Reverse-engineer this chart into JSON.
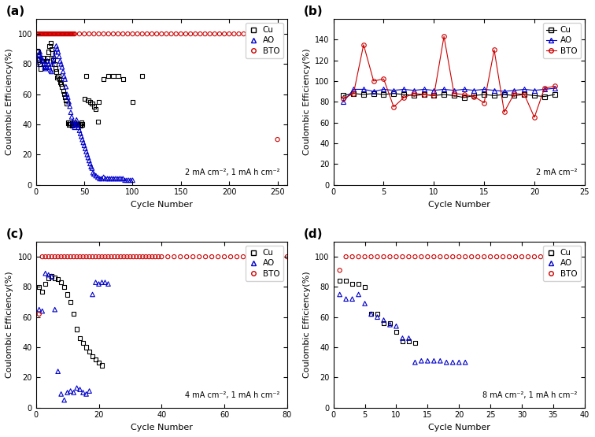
{
  "panel_a": {
    "Cu_x": [
      1,
      2,
      3,
      4,
      5,
      6,
      7,
      8,
      9,
      10,
      11,
      12,
      13,
      14,
      15,
      16,
      17,
      18,
      19,
      20,
      21,
      22,
      23,
      24,
      25,
      26,
      27,
      28,
      29,
      30,
      31,
      32,
      33,
      34,
      35,
      36,
      37,
      38,
      39,
      40,
      41,
      42,
      43,
      44,
      45,
      46,
      47,
      48,
      50,
      52,
      54,
      56,
      58,
      60,
      62,
      64,
      65,
      70,
      75,
      80,
      85,
      90,
      100,
      110
    ],
    "Cu_y": [
      89,
      88,
      83,
      80,
      77,
      82,
      84,
      82,
      80,
      78,
      82,
      84,
      88,
      92,
      94,
      90,
      87,
      83,
      80,
      77,
      75,
      71,
      72,
      70,
      68,
      67,
      65,
      62,
      60,
      58,
      56,
      54,
      41,
      40,
      41,
      40,
      39,
      40,
      40,
      41,
      40,
      40,
      40,
      40,
      40,
      39,
      41,
      40,
      57,
      72,
      56,
      55,
      54,
      52,
      50,
      42,
      55,
      70,
      72,
      72,
      72,
      70,
      55,
      72
    ],
    "AO_x": [
      1,
      2,
      3,
      4,
      5,
      6,
      7,
      8,
      9,
      10,
      11,
      12,
      13,
      14,
      15,
      16,
      17,
      18,
      19,
      20,
      21,
      22,
      23,
      24,
      25,
      26,
      27,
      28,
      29,
      30,
      31,
      32,
      33,
      34,
      35,
      36,
      37,
      38,
      39,
      40,
      41,
      42,
      43,
      44,
      45,
      46,
      47,
      48,
      49,
      50,
      51,
      52,
      53,
      54,
      55,
      56,
      57,
      58,
      59,
      60,
      62,
      64,
      66,
      68,
      70,
      72,
      74,
      76,
      78,
      80,
      82,
      84,
      86,
      88,
      90,
      92,
      94,
      96,
      98,
      100
    ],
    "AO_y": [
      80,
      84,
      86,
      88,
      85,
      84,
      82,
      80,
      78,
      77,
      78,
      82,
      80,
      78,
      76,
      75,
      80,
      82,
      85,
      88,
      92,
      90,
      88,
      85,
      82,
      80,
      78,
      75,
      72,
      70,
      65,
      60,
      58,
      55,
      52,
      48,
      45,
      42,
      40,
      38,
      40,
      43,
      40,
      38,
      36,
      34,
      32,
      30,
      28,
      26,
      24,
      22,
      20,
      18,
      16,
      14,
      12,
      11,
      8,
      7,
      6,
      5,
      4,
      4,
      5,
      4,
      4,
      4,
      4,
      4,
      4,
      4,
      4,
      4,
      4,
      3,
      3,
      3,
      3,
      3
    ],
    "BTO_x": [
      1,
      2,
      3,
      4,
      5,
      6,
      7,
      8,
      9,
      10,
      11,
      12,
      13,
      14,
      15,
      16,
      17,
      18,
      19,
      20,
      21,
      22,
      23,
      24,
      25,
      26,
      27,
      28,
      29,
      30,
      31,
      32,
      33,
      34,
      35,
      36,
      37,
      38,
      39,
      40,
      45,
      50,
      55,
      60,
      65,
      70,
      75,
      80,
      85,
      90,
      95,
      100,
      105,
      110,
      115,
      120,
      125,
      130,
      135,
      140,
      145,
      150,
      155,
      160,
      165,
      170,
      175,
      180,
      185,
      190,
      195,
      200,
      205,
      210,
      215,
      220,
      225,
      230,
      235,
      240,
      245,
      250
    ],
    "BTO_y": [
      100,
      100,
      100,
      100,
      100,
      100,
      100,
      100,
      100,
      100,
      100,
      100,
      100,
      100,
      100,
      100,
      100,
      100,
      100,
      100,
      100,
      100,
      100,
      100,
      100,
      100,
      100,
      100,
      100,
      100,
      100,
      100,
      100,
      100,
      100,
      100,
      100,
      100,
      100,
      100,
      100,
      100,
      100,
      100,
      100,
      100,
      100,
      100,
      100,
      100,
      100,
      100,
      100,
      100,
      100,
      100,
      100,
      100,
      100,
      100,
      100,
      100,
      100,
      100,
      100,
      100,
      100,
      100,
      100,
      100,
      100,
      100,
      100,
      100,
      100,
      100,
      100,
      100,
      100,
      100,
      100,
      30
    ],
    "annotation": "2 mA cm⁻², 1 mA h cm⁻²",
    "xlim": [
      0,
      260
    ],
    "ylim": [
      0,
      110
    ],
    "xticks": [
      0,
      50,
      100,
      150,
      200,
      250
    ],
    "yticks": [
      0,
      20,
      40,
      60,
      80,
      100
    ]
  },
  "panel_b": {
    "Cu_x": [
      1,
      2,
      3,
      4,
      5,
      6,
      7,
      8,
      9,
      10,
      11,
      12,
      13,
      14,
      15,
      16,
      17,
      18,
      19,
      20,
      21,
      22
    ],
    "Cu_y": [
      86,
      88,
      87,
      88,
      87,
      88,
      87,
      86,
      87,
      86,
      87,
      86,
      84,
      86,
      87,
      86,
      87,
      86,
      87,
      86,
      85,
      87
    ],
    "AO_x": [
      1,
      2,
      3,
      4,
      5,
      6,
      7,
      8,
      9,
      10,
      11,
      12,
      13,
      14,
      15,
      16,
      17,
      18,
      19,
      20,
      21,
      22
    ],
    "AO_y": [
      80,
      92,
      92,
      90,
      92,
      91,
      92,
      91,
      92,
      91,
      92,
      91,
      92,
      91,
      92,
      91,
      90,
      91,
      92,
      91,
      92,
      93
    ],
    "BTO_x": [
      1,
      2,
      3,
      4,
      5,
      6,
      7,
      8,
      9,
      10,
      11,
      12,
      13,
      14,
      15,
      16,
      17,
      18,
      19,
      20,
      21,
      22
    ],
    "BTO_y": [
      83,
      88,
      135,
      100,
      102,
      75,
      84,
      88,
      87,
      86,
      143,
      88,
      87,
      85,
      79,
      130,
      70,
      88,
      87,
      65,
      93,
      95
    ],
    "annotation": "2 mA cm⁻²",
    "xlim": [
      0,
      25
    ],
    "ylim": [
      0,
      160
    ],
    "xticks": [
      0,
      5,
      10,
      15,
      20,
      25
    ],
    "yticks": [
      0,
      20,
      40,
      60,
      80,
      100,
      120,
      140
    ]
  },
  "panel_c": {
    "Cu_x": [
      1,
      2,
      3,
      4,
      5,
      6,
      7,
      8,
      9,
      10,
      11,
      12,
      13,
      14,
      15,
      16,
      17,
      18,
      19,
      20,
      21
    ],
    "Cu_y": [
      80,
      77,
      82,
      86,
      87,
      86,
      85,
      83,
      80,
      75,
      70,
      62,
      52,
      46,
      43,
      40,
      37,
      34,
      32,
      30,
      28
    ],
    "AO_x": [
      1,
      2,
      3,
      4,
      5,
      6,
      7,
      8,
      9,
      10,
      11,
      12,
      13,
      14,
      15,
      16,
      17,
      18,
      19,
      20,
      21,
      22,
      23
    ],
    "AO_y": [
      65,
      64,
      89,
      88,
      87,
      65,
      24,
      9,
      5,
      10,
      11,
      10,
      13,
      12,
      10,
      9,
      11,
      75,
      83,
      82,
      83,
      83,
      82
    ],
    "BTO_x": [
      1,
      2,
      3,
      4,
      5,
      6,
      7,
      8,
      9,
      10,
      11,
      12,
      13,
      14,
      15,
      16,
      17,
      18,
      19,
      20,
      21,
      22,
      23,
      24,
      25,
      26,
      27,
      28,
      29,
      30,
      31,
      32,
      33,
      34,
      35,
      36,
      37,
      38,
      39,
      40,
      42,
      44,
      46,
      48,
      50,
      52,
      54,
      56,
      58,
      60,
      62,
      64,
      66,
      68,
      70,
      72,
      74,
      76,
      78,
      80
    ],
    "BTO_y": [
      62,
      100,
      100,
      100,
      100,
      100,
      100,
      100,
      100,
      100,
      100,
      100,
      100,
      100,
      100,
      100,
      100,
      100,
      100,
      100,
      100,
      100,
      100,
      100,
      100,
      100,
      100,
      100,
      100,
      100,
      100,
      100,
      100,
      100,
      100,
      100,
      100,
      100,
      100,
      100,
      100,
      100,
      100,
      100,
      100,
      100,
      100,
      100,
      100,
      100,
      100,
      100,
      100,
      100,
      100,
      100,
      100,
      100,
      100,
      100
    ],
    "annotation": "4 mA cm⁻², 1 mA h cm⁻²",
    "xlim": [
      0,
      80
    ],
    "ylim": [
      0,
      110
    ],
    "xticks": [
      0,
      20,
      40,
      60,
      80
    ],
    "yticks": [
      0,
      20,
      40,
      60,
      80,
      100
    ]
  },
  "panel_d": {
    "Cu_x": [
      1,
      2,
      3,
      4,
      5,
      6,
      7,
      8,
      9,
      10,
      11,
      12,
      13
    ],
    "Cu_y": [
      84,
      84,
      82,
      82,
      80,
      62,
      62,
      56,
      56,
      50,
      44,
      44,
      43
    ],
    "AO_x": [
      1,
      2,
      3,
      4,
      5,
      6,
      7,
      8,
      9,
      10,
      11,
      12,
      13,
      14,
      15,
      16,
      17,
      18,
      19,
      20,
      21
    ],
    "AO_y": [
      75,
      72,
      72,
      75,
      69,
      62,
      60,
      58,
      55,
      54,
      46,
      46,
      30,
      31,
      31,
      31,
      31,
      30,
      30,
      30,
      30
    ],
    "BTO_x": [
      1,
      2,
      3,
      4,
      5,
      6,
      7,
      8,
      9,
      10,
      11,
      12,
      13,
      14,
      15,
      16,
      17,
      18,
      19,
      20,
      21,
      22,
      23,
      24,
      25,
      26,
      27,
      28,
      29,
      30,
      31,
      32,
      33,
      34,
      35
    ],
    "BTO_y": [
      91,
      100,
      100,
      100,
      100,
      100,
      100,
      100,
      100,
      100,
      100,
      100,
      100,
      100,
      100,
      100,
      100,
      100,
      100,
      100,
      100,
      100,
      100,
      100,
      100,
      100,
      100,
      100,
      100,
      100,
      100,
      100,
      100,
      100,
      100
    ],
    "annotation": "8 mA cm⁻², 1 mA h cm⁻²",
    "xlim": [
      0,
      40
    ],
    "ylim": [
      0,
      110
    ],
    "xticks": [
      0,
      5,
      10,
      15,
      20,
      25,
      30,
      35,
      40
    ],
    "yticks": [
      0,
      20,
      40,
      60,
      80,
      100
    ]
  },
  "colors": {
    "Cu": "#000000",
    "AO": "#0000cc",
    "BTO": "#cc0000"
  },
  "ylabel": "Coulombic Efficiency(%)",
  "xlabel": "Cycle Number"
}
